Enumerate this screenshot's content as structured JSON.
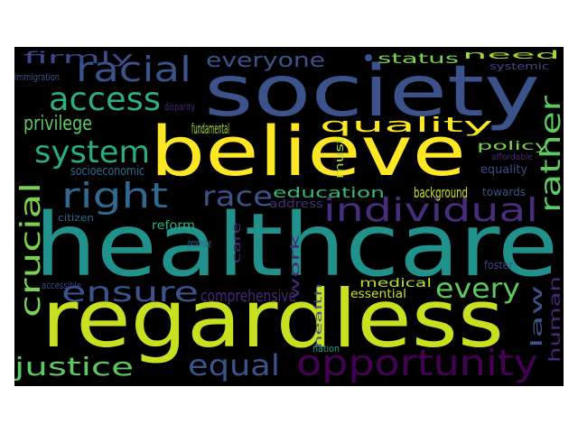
{
  "wordcloud": {
    "words": [
      {
        "text": "healthcare",
        "color": "#21918c"
      },
      {
        "text": "regardless",
        "color": "#c8e020"
      },
      {
        "text": "society",
        "color": "#3b528b"
      },
      {
        "text": "believe",
        "color": "#fde725"
      },
      {
        "text": "opportunity",
        "color": "#440154"
      },
      {
        "text": "individual",
        "color": "#472d7b"
      },
      {
        "text": "racial",
        "color": "#3b528b"
      },
      {
        "text": "access",
        "color": "#2cb17e"
      },
      {
        "text": "right",
        "color": "#31688e"
      },
      {
        "text": "system",
        "color": "#28ae80"
      },
      {
        "text": "race",
        "color": "#3b528b"
      },
      {
        "text": "justice",
        "color": "#5ec962"
      },
      {
        "text": "equal",
        "color": "#3b528b"
      },
      {
        "text": "ensure",
        "color": "#3b528b"
      },
      {
        "text": "every",
        "color": "#5ec962"
      },
      {
        "text": "everyone",
        "color": "#3b528b"
      },
      {
        "text": "quality",
        "color": "#fde725"
      },
      {
        "text": "privilege",
        "color": "#5ec962"
      },
      {
        "text": "comprehensive",
        "color": "#482878"
      },
      {
        "text": "firmly",
        "color": "#3e4989"
      },
      {
        "text": "education",
        "color": "#35b779"
      },
      {
        "text": "background",
        "color": "#d0e11c"
      },
      {
        "text": "fundamental",
        "color": "#a0da39"
      },
      {
        "text": "status",
        "color": "#7ad151"
      },
      {
        "text": "need",
        "color": "#a0da39"
      },
      {
        "text": "systemic",
        "color": "#3e4989"
      },
      {
        "text": "socioeconomic",
        "color": "#31688e"
      },
      {
        "text": "address",
        "color": "#472d7b"
      },
      {
        "text": "policy",
        "color": "#7ad151"
      },
      {
        "text": "affordable",
        "color": "#482878"
      },
      {
        "text": "equality",
        "color": "#3e4989"
      },
      {
        "text": "towards",
        "color": "#3b528b"
      },
      {
        "text": "essential",
        "color": "#c8e020"
      },
      {
        "text": "medical",
        "color": "#b5de2b"
      },
      {
        "text": "citizen",
        "color": "#31688e"
      },
      {
        "text": "reform",
        "color": "#2cb17e"
      },
      {
        "text": "promote",
        "color": "#31688e"
      },
      {
        "text": "accessible",
        "color": "#3e4989"
      },
      {
        "text": "immigration",
        "color": "#3b528b"
      },
      {
        "text": "disparity",
        "color": "#482878"
      },
      {
        "text": "nation",
        "color": "#1f9e89"
      },
      {
        "text": "foster",
        "color": "#3e4989"
      },
      {
        "text": "crucial",
        "color": "#7ad151"
      },
      {
        "text": "rather",
        "color": "#5ec962"
      },
      {
        "text": "law",
        "color": "#3b528b"
      },
      {
        "text": "human",
        "color": "#482878"
      },
      {
        "text": "health",
        "color": "#3b528b"
      },
      {
        "text": "work",
        "color": "#482878"
      },
      {
        "text": "care",
        "color": "#482878"
      },
      {
        "text": "must",
        "color": "#b5de2b"
      }
    ]
  }
}
